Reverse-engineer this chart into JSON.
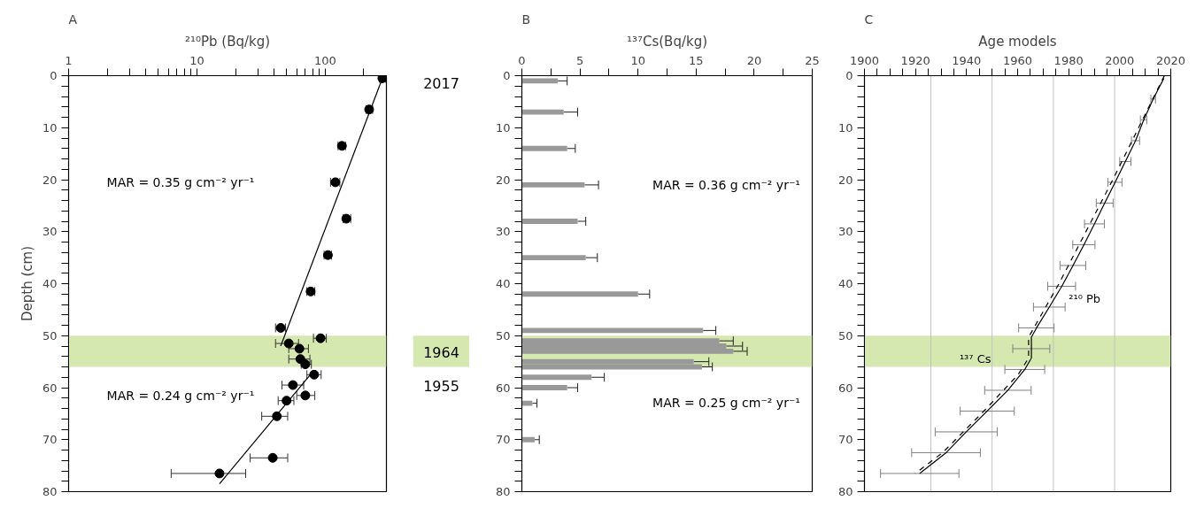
{
  "chart_data": [
    {
      "type": "scatter",
      "title": "A",
      "xlabel": "²¹⁰Pb (Bq/kg)",
      "ylabel": "Depth (cm)",
      "log": "x",
      "xlim": [
        1,
        300
      ],
      "ylim": [
        80,
        0
      ],
      "xticks": [
        1,
        {
          "value": 2,
          "label": null
        },
        {
          "value": 3,
          "label": null
        },
        {
          "value": 4,
          "label": null
        },
        {
          "value": 5,
          "label": null
        },
        {
          "value": 6,
          "label": null
        },
        {
          "value": 7,
          "label": null
        },
        {
          "value": 8,
          "label": null
        },
        {
          "value": 9,
          "label": null
        },
        10,
        {
          "value": 20,
          "label": null
        },
        {
          "value": 30,
          "label": null
        },
        {
          "value": 40,
          "label": null
        },
        {
          "value": 50,
          "label": null
        },
        {
          "value": 60,
          "label": null
        },
        {
          "value": 70,
          "label": null
        },
        {
          "value": 80,
          "label": null
        },
        {
          "value": 90,
          "label": null
        },
        100,
        {
          "value": 200,
          "label": null
        }
      ],
      "yticks": [
        0,
        {
          "value": 2,
          "label": null
        },
        {
          "value": 4,
          "label": null
        },
        {
          "value": 6,
          "label": null
        },
        {
          "value": 8,
          "label": null
        },
        10,
        {
          "value": 12,
          "label": null
        },
        {
          "value": 14,
          "label": null
        },
        {
          "value": 16,
          "label": null
        },
        {
          "value": 18,
          "label": null
        },
        20,
        {
          "value": 22,
          "label": null
        },
        {
          "value": 24,
          "label": null
        },
        {
          "value": 26,
          "label": null
        },
        {
          "value": 28,
          "label": null
        },
        30,
        {
          "value": 32,
          "label": null
        },
        {
          "value": 34,
          "label": null
        },
        {
          "value": 36,
          "label": null
        },
        {
          "value": 38,
          "label": null
        },
        40,
        {
          "value": 42,
          "label": null
        },
        {
          "value": 44,
          "label": null
        },
        {
          "value": 46,
          "label": null
        },
        {
          "value": 48,
          "label": null
        },
        50,
        {
          "value": 52,
          "label": null
        },
        {
          "value": 54,
          "label": null
        },
        {
          "value": 56,
          "label": null
        },
        {
          "value": 58,
          "label": null
        },
        60,
        {
          "value": 62,
          "label": null
        },
        {
          "value": 64,
          "label": null
        },
        {
          "value": 66,
          "label": null
        },
        {
          "value": 68,
          "label": null
        },
        70,
        {
          "value": 72,
          "label": null
        },
        {
          "value": 74,
          "label": null
        },
        {
          "value": 76,
          "label": null
        },
        {
          "value": 78,
          "label": null
        },
        80
      ],
      "series": [
        {
          "type": "scatter",
          "marker": "circle",
          "color": "#000000",
          "x": [
            279,
            220,
            135,
            120,
            146,
            105,
            77,
            45,
            92,
            52,
            63,
            64,
            70,
            82,
            56,
            70,
            50,
            42,
            39,
            15
          ],
          "values": [
            0.5,
            6.5,
            13.5,
            20.5,
            27.5,
            34.5,
            41.5,
            48.5,
            50.5,
            51.5,
            52.5,
            54.5,
            55.5,
            57.5,
            59.5,
            61.5,
            62.5,
            65.5,
            73.5,
            76.5
          ],
          "xerrors": [
            [
              265,
              295
            ],
            [
              208,
              234
            ],
            [
              126,
              144
            ],
            [
              110,
              130
            ],
            [
              138,
              158
            ],
            [
              98,
              112
            ],
            [
              72,
              83
            ],
            [
              41,
              49
            ],
            [
              81,
              102
            ],
            [
              41,
              62
            ],
            [
              52,
              74
            ],
            [
              52,
              76
            ],
            [
              65,
              78
            ],
            [
              72,
              93
            ],
            [
              46,
              68
            ],
            [
              60,
              83
            ],
            [
              43,
              57
            ],
            [
              32,
              51
            ],
            [
              26,
              51
            ],
            [
              6.3,
              24
            ]
          ]
        },
        {
          "type": "line",
          "color": "#000000",
          "x": [
            284,
            45
          ],
          "values": [
            0,
            52
          ]
        },
        {
          "type": "line",
          "color": "#000000",
          "x": [
            76,
            15
          ],
          "values": [
            57.6,
            78.5
          ]
        }
      ],
      "bands": [
        {
          "axis": "y",
          "from": 50,
          "to": 56,
          "color": "#d5e8b0"
        }
      ],
      "annotations": [
        "MAR = 0.35 g cm⁻² yr⁻¹",
        "MAR = 0.24 g cm⁻² yr⁻¹",
        "2017",
        "1964",
        "1955"
      ]
    },
    {
      "type": "bar",
      "orientation": "horizontal",
      "title": "B",
      "xlabel": "¹³⁷Cs(Bq/kg)",
      "color": "#999999",
      "xlim": [
        0,
        25
      ],
      "ylim": [
        80,
        0
      ],
      "xticks": [
        0,
        {
          "value": 2.5,
          "label": null
        },
        5,
        {
          "value": 7.5,
          "label": null
        },
        10,
        {
          "value": 12.5,
          "label": null
        },
        15,
        {
          "value": 17.5,
          "label": null
        },
        20,
        {
          "value": 22.5,
          "label": null
        },
        25
      ],
      "yticks": [
        0,
        {
          "value": 2,
          "label": null
        },
        {
          "value": 4,
          "label": null
        },
        {
          "value": 6,
          "label": null
        },
        {
          "value": 8,
          "label": null
        },
        10,
        {
          "value": 12,
          "label": null
        },
        {
          "value": 14,
          "label": null
        },
        {
          "value": 16,
          "label": null
        },
        {
          "value": 18,
          "label": null
        },
        20,
        {
          "value": 22,
          "label": null
        },
        {
          "value": 24,
          "label": null
        },
        {
          "value": 26,
          "label": null
        },
        {
          "value": 28,
          "label": null
        },
        30,
        {
          "value": 32,
          "label": null
        },
        {
          "value": 34,
          "label": null
        },
        {
          "value": 36,
          "label": null
        },
        {
          "value": 38,
          "label": null
        },
        40,
        {
          "value": 42,
          "label": null
        },
        {
          "value": 44,
          "label": null
        },
        {
          "value": 46,
          "label": null
        },
        {
          "value": 48,
          "label": null
        },
        50,
        {
          "value": 52,
          "label": null
        },
        {
          "value": 54,
          "label": null
        },
        {
          "value": 56,
          "label": null
        },
        {
          "value": 58,
          "label": null
        },
        60,
        {
          "value": 62,
          "label": null
        },
        {
          "value": 64,
          "label": null
        },
        {
          "value": 66,
          "label": null
        },
        {
          "value": 68,
          "label": null
        },
        70,
        {
          "value": 72,
          "label": null
        },
        {
          "value": 74,
          "label": null
        },
        {
          "value": 76,
          "label": null
        },
        {
          "value": 78,
          "label": null
        },
        80
      ],
      "x": [
        1,
        7,
        14,
        21,
        28,
        35,
        42,
        49,
        51,
        52,
        53,
        55,
        56,
        58,
        60,
        63,
        70
      ],
      "values": [
        3.1,
        3.6,
        3.9,
        5.4,
        4.8,
        5.5,
        10.0,
        15.6,
        17.0,
        17.6,
        18.2,
        14.8,
        15.5,
        6.0,
        3.9,
        0.9,
        1.1
      ],
      "errors": [
        [
          3.1,
          3.9
        ],
        [
          3.6,
          4.8
        ],
        [
          3.9,
          4.6
        ],
        [
          5.4,
          6.6
        ],
        [
          4.8,
          5.5
        ],
        [
          5.5,
          6.5
        ],
        [
          10.0,
          11.0
        ],
        [
          15.6,
          16.7
        ],
        [
          17.0,
          18.2
        ],
        [
          17.6,
          19.0
        ],
        [
          18.2,
          19.4
        ],
        [
          14.8,
          16.1
        ],
        [
          15.5,
          16.4
        ],
        [
          6.0,
          7.1
        ],
        [
          3.9,
          4.8
        ],
        [
          0.9,
          1.3
        ],
        [
          1.1,
          1.5
        ]
      ],
      "bands": [
        {
          "axis": "y",
          "from": 50,
          "to": 56,
          "color": "#d5e8b0"
        }
      ],
      "annotations": [
        "MAR = 0.36 g cm⁻² yr⁻¹",
        "MAR = 0.25 g cm⁻² yr⁻¹"
      ]
    },
    {
      "type": "line",
      "title": "C",
      "xlabel": "Age models",
      "xlim": [
        1900,
        2020
      ],
      "ylim": [
        80,
        0
      ],
      "xticks": [
        1900,
        {
          "value": 1905,
          "label": null
        },
        {
          "value": 1910,
          "label": null
        },
        {
          "value": 1915,
          "label": null
        },
        1920,
        {
          "value": 1925,
          "label": null
        },
        {
          "value": 1930,
          "label": null
        },
        {
          "value": 1935,
          "label": null
        },
        1940,
        {
          "value": 1945,
          "label": null
        },
        {
          "value": 1950,
          "label": null
        },
        {
          "value": 1955,
          "label": null
        },
        1960,
        {
          "value": 1965,
          "label": null
        },
        {
          "value": 1970,
          "label": null
        },
        {
          "value": 1975,
          "label": null
        },
        1980,
        {
          "value": 1985,
          "label": null
        },
        {
          "value": 1990,
          "label": null
        },
        {
          "value": 1995,
          "label": null
        },
        2000,
        {
          "value": 2005,
          "label": null
        },
        {
          "value": 2010,
          "label": null
        },
        {
          "value": 2015,
          "label": null
        },
        2020
      ],
      "yticks": [
        0,
        {
          "value": 2,
          "label": null
        },
        {
          "value": 4,
          "label": null
        },
        {
          "value": 6,
          "label": null
        },
        {
          "value": 8,
          "label": null
        },
        10,
        {
          "value": 12,
          "label": null
        },
        {
          "value": 14,
          "label": null
        },
        {
          "value": 16,
          "label": null
        },
        {
          "value": 18,
          "label": null
        },
        20,
        {
          "value": 22,
          "label": null
        },
        {
          "value": 24,
          "label": null
        },
        {
          "value": 26,
          "label": null
        },
        {
          "value": 28,
          "label": null
        },
        30,
        {
          "value": 32,
          "label": null
        },
        {
          "value": 34,
          "label": null
        },
        {
          "value": 36,
          "label": null
        },
        {
          "value": 38,
          "label": null
        },
        40,
        {
          "value": 42,
          "label": null
        },
        {
          "value": 44,
          "label": null
        },
        {
          "value": 46,
          "label": null
        },
        {
          "value": 48,
          "label": null
        },
        50,
        {
          "value": 52,
          "label": null
        },
        {
          "value": 54,
          "label": null
        },
        {
          "value": 56,
          "label": null
        },
        {
          "value": 58,
          "label": null
        },
        60,
        {
          "value": 62,
          "label": null
        },
        {
          "value": 64,
          "label": null
        },
        {
          "value": 66,
          "label": null
        },
        {
          "value": 68,
          "label": null
        },
        70,
        {
          "value": 72,
          "label": null
        },
        {
          "value": 74,
          "label": null
        },
        {
          "value": 76,
          "label": null
        },
        {
          "value": 78,
          "label": null
        },
        80
      ],
      "series": [
        {
          "name": "¹³⁷ Cs",
          "type": "line",
          "line_style": "dashed",
          "color": "#000000",
          "x": [
            2017.5,
            1997.3,
            1976.2,
            1964.3,
            1964.3,
            1960.2,
            1946.8,
            1930.6,
            1919.9
          ],
          "values": [
            0,
            20,
            40,
            50.3,
            54.3,
            57.5,
            64.5,
            72.5,
            76.5
          ]
        },
        {
          "name": "²¹⁰ Pb",
          "type": "line",
          "line_style": "solid",
          "color": "#000000",
          "x": [
            2017.3,
            2013.1,
            2009.4,
            2006.2,
            2002.2,
            1998.2,
            1994.1,
            1990.1,
            1986,
            1981.7,
            1977.3,
            1972.4,
            1967.4,
            1965.4,
            1965.4,
            1965.4,
            1962.8,
            1956.2,
            1948.1,
            1939.9,
            1932,
            1921.6
          ],
          "values": [
            0.5,
            4.5,
            8.5,
            12.5,
            16.5,
            20.5,
            24.5,
            28.5,
            32.5,
            36.5,
            40.5,
            44.5,
            48.5,
            50.3,
            52.5,
            54.3,
            56.5,
            60.5,
            64.5,
            68.5,
            72.5,
            76.5
          ],
          "xerrors": [
            null,
            [
              2012.2,
              2014.0
            ],
            [
              2008.1,
              2010.6
            ],
            [
              2004.6,
              2007.8
            ],
            [
              2000,
              2004.4
            ],
            [
              1995.4,
              2000.9
            ],
            [
              1990.8,
              1997.4
            ],
            [
              1986.2,
              1994
            ],
            [
              1981.6,
              1990.3
            ],
            [
              1976.6,
              1986.7
            ],
            [
              1971.8,
              1982.7
            ],
            [
              1966.2,
              1978.6
            ],
            [
              1960.4,
              1974.3
            ],
            null,
            [
              1958.1,
              1972.6
            ],
            null,
            [
              1955,
              1970.6
            ],
            [
              1947.1,
              1965.3
            ],
            [
              1937.5,
              1958.7
            ],
            [
              1927.7,
              1952
            ],
            [
              1918.5,
              1945.4
            ],
            [
              1906.3,
              1937
            ]
          ]
        }
      ],
      "ref_lines": [
        {
          "axis": "x",
          "value": 1926,
          "color": "#c0c0c0"
        },
        {
          "axis": "x",
          "value": 1950,
          "color": "#c0c0c0"
        },
        {
          "axis": "x",
          "value": 1974,
          "color": "#c0c0c0"
        },
        {
          "axis": "x",
          "value": 1998,
          "color": "#c0c0c0"
        }
      ],
      "bands": [
        {
          "axis": "y",
          "from": 50,
          "to": 56,
          "color": "#d5e8b0"
        }
      ]
    }
  ]
}
